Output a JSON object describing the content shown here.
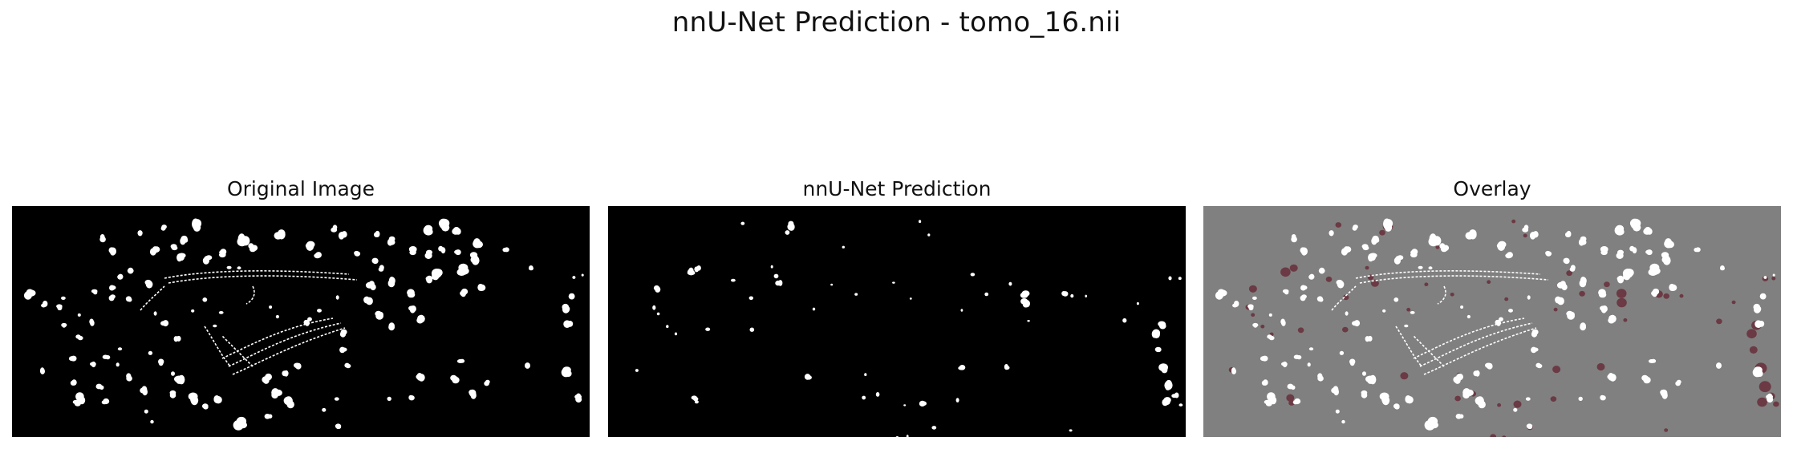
{
  "figure": {
    "title": "nnU-Net Prediction - tomo_16.nii"
  },
  "panels": [
    {
      "title": "Original Image",
      "background": "#000000",
      "blob_color": "#ffffff"
    },
    {
      "title": "nnU-Net Prediction",
      "background": "#000000",
      "blob_color": "#ffffff"
    },
    {
      "title": "Overlay",
      "background": "#808080",
      "blob_color": "#ffffff",
      "overlay_color": "#6b3a44"
    }
  ]
}
